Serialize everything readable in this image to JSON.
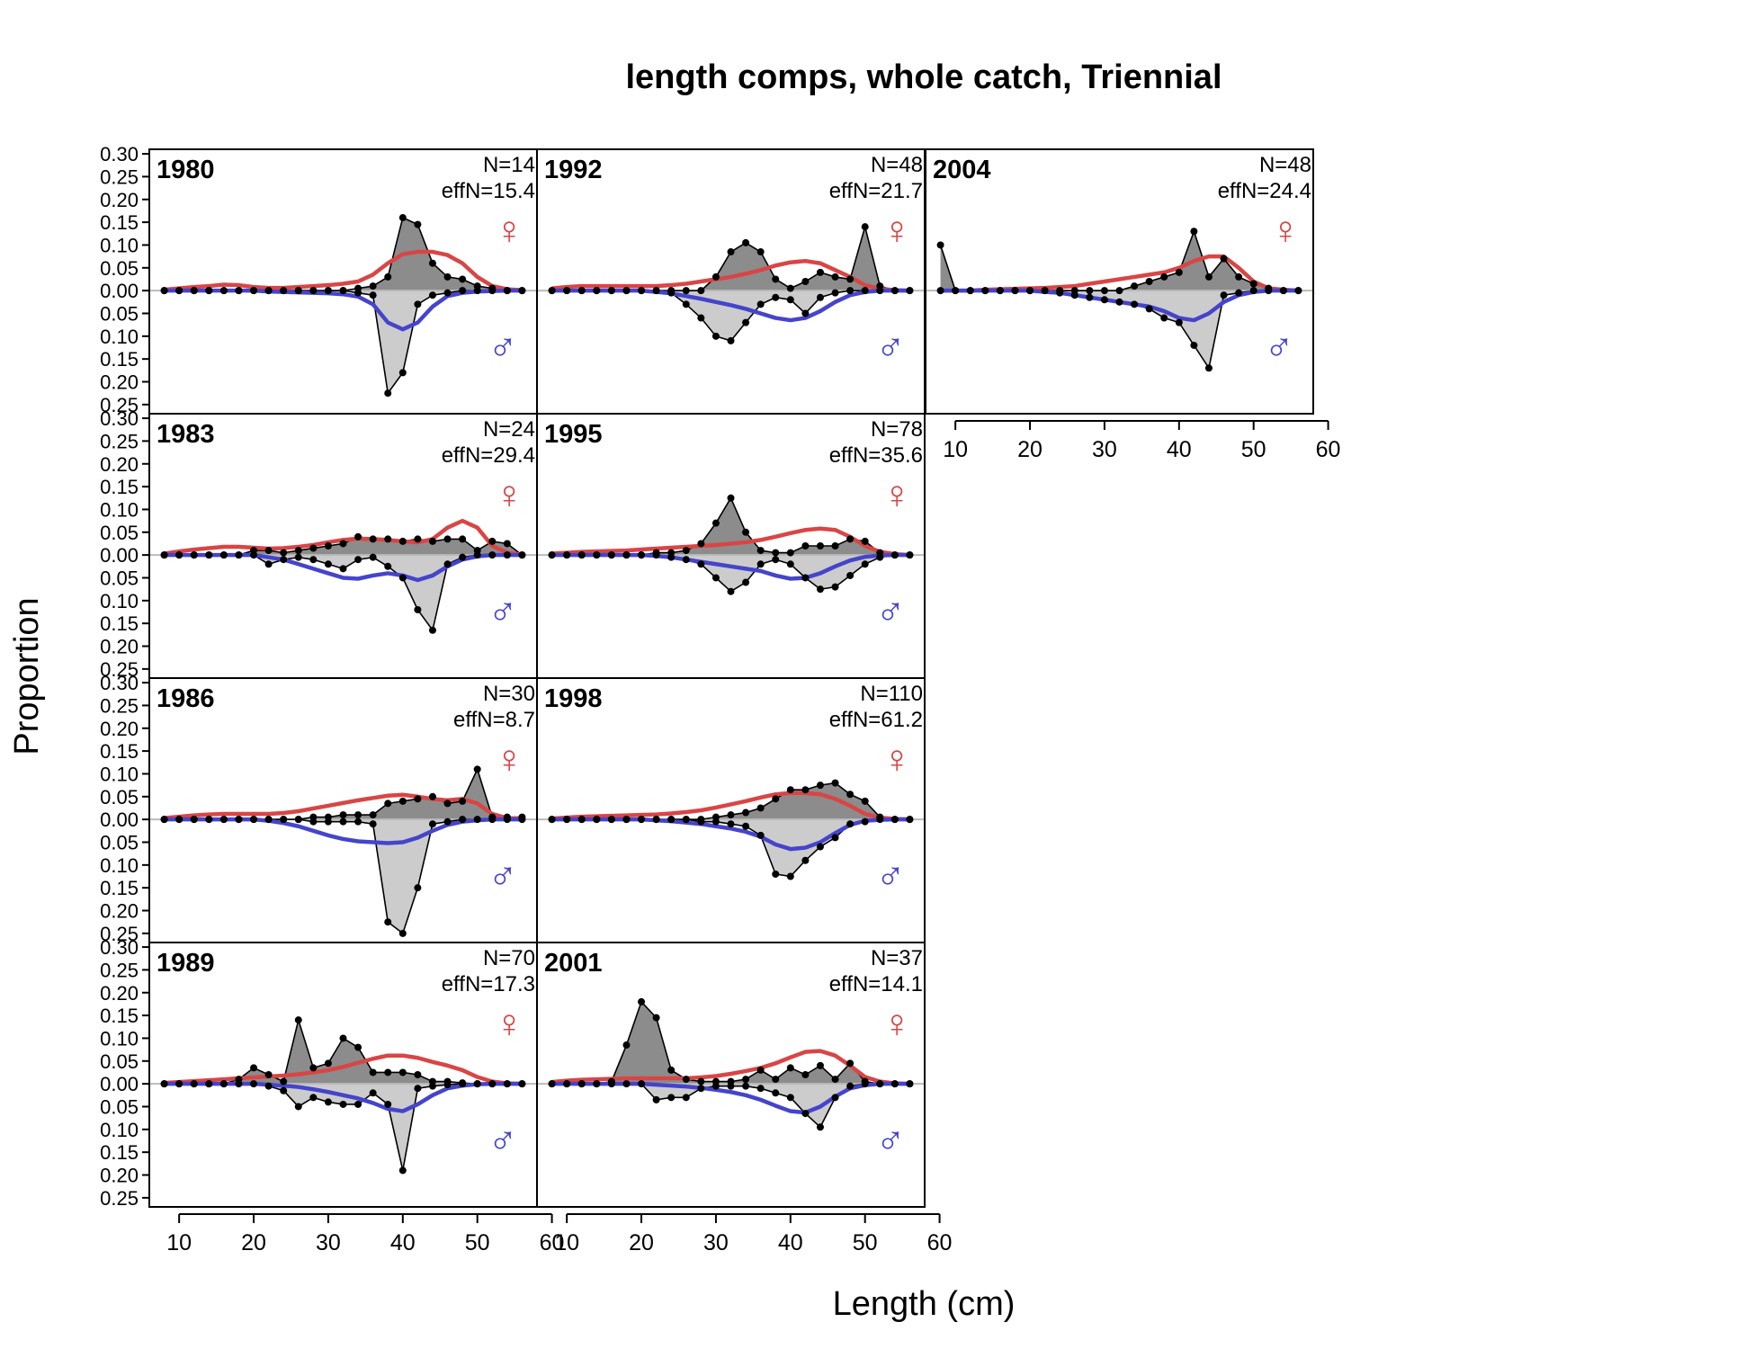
{
  "chart_data": {
    "type": "area",
    "title": "length comps, whole catch, Triennial",
    "xlabel": "Length (cm)",
    "ylabel": "Proportion",
    "xlim": [
      6,
      58
    ],
    "ylim": [
      -0.27,
      0.31
    ],
    "x_ticks": [
      10,
      20,
      30,
      40,
      50,
      60
    ],
    "y_ticks": [
      -0.25,
      -0.2,
      -0.15,
      -0.1,
      -0.05,
      0,
      0.05,
      0.1,
      0.15,
      0.2,
      0.25,
      0.3
    ],
    "y_tick_labels": [
      "0.25",
      "0.20",
      "0.15",
      "0.10",
      "0.05",
      "0.00",
      "0.05",
      "0.10",
      "0.15",
      "0.20",
      "0.25",
      "0.30"
    ],
    "female_symbol": "♀",
    "male_symbol": "♂",
    "series_colors": {
      "female_expected": "#d94545",
      "male_expected": "#4444cc",
      "observed_fill": "#8c8c8c",
      "observed_male_fill": "#cccccc",
      "zero_line": "#bbbbbb"
    },
    "length_bins": [
      8,
      10,
      12,
      14,
      16,
      18,
      20,
      22,
      24,
      26,
      28,
      30,
      32,
      34,
      36,
      38,
      40,
      42,
      44,
      46,
      48,
      50,
      52,
      54,
      56
    ],
    "panels": [
      {
        "year": "1980",
        "n_label": "N=14",
        "effn_label": "effN=15.4",
        "obs_female": [
          0,
          0,
          0,
          0,
          0,
          0,
          0,
          0,
          0,
          0,
          0,
          0,
          0,
          0.005,
          0.01,
          0.03,
          0.16,
          0.145,
          0.06,
          0.03,
          0.025,
          0.01,
          0.005,
          0,
          0
        ],
        "obs_male": [
          0,
          0,
          0,
          0,
          0,
          0,
          0,
          0,
          0,
          0,
          0,
          0,
          0,
          -0.005,
          -0.01,
          -0.225,
          -0.18,
          -0.03,
          -0.01,
          -0.005,
          0,
          0,
          0,
          0,
          0
        ],
        "exp_female": [
          0.002,
          0.005,
          0.008,
          0.01,
          0.013,
          0.012,
          0.008,
          0.006,
          0.006,
          0.008,
          0.01,
          0.012,
          0.015,
          0.02,
          0.035,
          0.06,
          0.08,
          0.085,
          0.085,
          0.078,
          0.06,
          0.03,
          0.01,
          0.003,
          0.001
        ],
        "exp_male": [
          0,
          0,
          0,
          0,
          0,
          0,
          0,
          -0.002,
          -0.003,
          -0.004,
          -0.005,
          -0.006,
          -0.008,
          -0.013,
          -0.03,
          -0.07,
          -0.085,
          -0.07,
          -0.035,
          -0.012,
          -0.005,
          -0.002,
          -0.001,
          0,
          0
        ]
      },
      {
        "year": "1992",
        "n_label": "N=48",
        "effn_label": "effN=21.7",
        "obs_female": [
          0,
          0,
          0,
          0,
          0,
          0,
          0,
          0,
          0,
          0,
          0,
          0.03,
          0.085,
          0.105,
          0.085,
          0.025,
          0.005,
          0.02,
          0.04,
          0.03,
          0.025,
          0.14,
          0.01,
          0,
          0
        ],
        "obs_male": [
          0,
          0,
          0,
          0,
          0,
          0,
          0,
          0,
          -0.005,
          -0.03,
          -0.06,
          -0.1,
          -0.11,
          -0.07,
          -0.03,
          -0.015,
          -0.02,
          -0.05,
          -0.015,
          -0.005,
          0,
          0,
          0,
          0,
          0
        ],
        "exp_female": [
          0.005,
          0.008,
          0.01,
          0.01,
          0.01,
          0.01,
          0.01,
          0.01,
          0.012,
          0.015,
          0.02,
          0.025,
          0.03,
          0.037,
          0.045,
          0.055,
          0.062,
          0.065,
          0.06,
          0.045,
          0.03,
          0.012,
          0.004,
          0.001,
          0
        ],
        "exp_male": [
          0,
          0,
          0,
          0,
          0,
          0,
          0,
          -0.003,
          -0.006,
          -0.012,
          -0.018,
          -0.025,
          -0.032,
          -0.04,
          -0.05,
          -0.06,
          -0.065,
          -0.06,
          -0.045,
          -0.025,
          -0.01,
          -0.003,
          0,
          0,
          0
        ]
      },
      {
        "year": "2004",
        "n_label": "N=48",
        "effn_label": "effN=24.4",
        "obs_female": [
          0.1,
          0,
          0,
          0,
          0,
          0,
          0,
          0,
          0,
          0,
          0,
          0,
          0,
          0.01,
          0.02,
          0.03,
          0.04,
          0.13,
          0.03,
          0.07,
          0.03,
          0.015,
          0.005,
          0,
          0
        ],
        "obs_male": [
          0,
          0,
          0,
          0,
          0,
          0,
          0,
          0,
          -0.005,
          -0.01,
          -0.015,
          -0.02,
          -0.025,
          -0.03,
          -0.04,
          -0.06,
          -0.07,
          -0.12,
          -0.17,
          -0.01,
          -0.005,
          0,
          0,
          0,
          0
        ],
        "exp_female": [
          0,
          0,
          0,
          0.002,
          0.003,
          0.004,
          0.005,
          0.006,
          0.008,
          0.01,
          0.015,
          0.02,
          0.025,
          0.03,
          0.035,
          0.04,
          0.05,
          0.065,
          0.075,
          0.075,
          0.05,
          0.02,
          0.005,
          0.002,
          0
        ],
        "exp_male": [
          0,
          0,
          0,
          0,
          0,
          0,
          0,
          -0.003,
          -0.005,
          -0.01,
          -0.015,
          -0.02,
          -0.025,
          -0.03,
          -0.035,
          -0.045,
          -0.06,
          -0.065,
          -0.05,
          -0.025,
          -0.01,
          -0.003,
          0,
          0,
          0
        ]
      },
      {
        "year": "1983",
        "n_label": "N=24",
        "effn_label": "effN=29.4",
        "obs_female": [
          0,
          0,
          0,
          0,
          0,
          0,
          0.01,
          0.01,
          0.005,
          0.01,
          0.015,
          0.02,
          0.025,
          0.04,
          0.035,
          0.035,
          0.03,
          0.035,
          0.03,
          0.035,
          0.035,
          0.01,
          0.03,
          0.025,
          0
        ],
        "obs_male": [
          0,
          0,
          0,
          0,
          0,
          0,
          0,
          -0.02,
          -0.01,
          -0.005,
          -0.01,
          -0.02,
          -0.03,
          -0.01,
          -0.005,
          -0.025,
          -0.05,
          -0.12,
          -0.165,
          -0.02,
          -0.005,
          0,
          0,
          0,
          0
        ],
        "exp_female": [
          0.003,
          0.008,
          0.012,
          0.015,
          0.018,
          0.018,
          0.016,
          0.014,
          0.015,
          0.018,
          0.022,
          0.028,
          0.033,
          0.036,
          0.035,
          0.033,
          0.03,
          0.028,
          0.035,
          0.06,
          0.075,
          0.06,
          0.02,
          0.005,
          0.001
        ],
        "exp_male": [
          0,
          0,
          0,
          0,
          0,
          0,
          0,
          -0.005,
          -0.01,
          -0.02,
          -0.03,
          -0.04,
          -0.05,
          -0.052,
          -0.045,
          -0.04,
          -0.045,
          -0.055,
          -0.045,
          -0.025,
          -0.01,
          -0.003,
          0,
          0,
          0
        ]
      },
      {
        "year": "1995",
        "n_label": "N=78",
        "effn_label": "effN=35.6",
        "obs_female": [
          0,
          0,
          0,
          0,
          0,
          0,
          0,
          0.005,
          0.005,
          0.01,
          0.025,
          0.07,
          0.125,
          0.05,
          0.01,
          0.005,
          0.005,
          0.02,
          0.02,
          0.02,
          0.035,
          0.03,
          0.005,
          0,
          0
        ],
        "obs_male": [
          0,
          0,
          0,
          0,
          0,
          0,
          0,
          0,
          -0.005,
          -0.01,
          -0.02,
          -0.05,
          -0.08,
          -0.06,
          -0.02,
          -0.01,
          -0.02,
          -0.05,
          -0.075,
          -0.07,
          -0.045,
          -0.02,
          -0.005,
          0,
          0
        ],
        "exp_female": [
          0.003,
          0.005,
          0.007,
          0.008,
          0.009,
          0.01,
          0.012,
          0.014,
          0.016,
          0.018,
          0.02,
          0.022,
          0.025,
          0.028,
          0.033,
          0.04,
          0.048,
          0.055,
          0.058,
          0.055,
          0.04,
          0.02,
          0.007,
          0.002,
          0
        ],
        "exp_male": [
          0,
          0,
          0,
          0,
          0,
          0,
          0,
          -0.002,
          -0.005,
          -0.01,
          -0.015,
          -0.02,
          -0.025,
          -0.03,
          -0.035,
          -0.045,
          -0.052,
          -0.05,
          -0.04,
          -0.025,
          -0.012,
          -0.004,
          -0.001,
          0,
          0
        ]
      },
      {
        "year": "1986",
        "n_label": "N=30",
        "effn_label": "effN=8.7",
        "obs_female": [
          0,
          0,
          0,
          0,
          0,
          0,
          0,
          0,
          0,
          0,
          0.005,
          0.005,
          0.01,
          0.01,
          0.01,
          0.035,
          0.04,
          0.045,
          0.05,
          0.035,
          0.04,
          0.11,
          0.005,
          0.005,
          0.005
        ],
        "obs_male": [
          0,
          0,
          0,
          0,
          0,
          0,
          0,
          0,
          0,
          0,
          -0.005,
          -0.005,
          -0.005,
          -0.005,
          -0.01,
          -0.225,
          -0.25,
          -0.15,
          -0.01,
          -0.005,
          0,
          0,
          0,
          0,
          0
        ],
        "exp_female": [
          0.003,
          0.006,
          0.009,
          0.011,
          0.012,
          0.012,
          0.012,
          0.012,
          0.014,
          0.018,
          0.024,
          0.03,
          0.036,
          0.042,
          0.047,
          0.052,
          0.054,
          0.05,
          0.045,
          0.042,
          0.045,
          0.035,
          0.012,
          0.003,
          0.001
        ],
        "exp_male": [
          0,
          0,
          0,
          0,
          0,
          0,
          0,
          -0.003,
          -0.008,
          -0.015,
          -0.025,
          -0.035,
          -0.043,
          -0.048,
          -0.05,
          -0.052,
          -0.05,
          -0.04,
          -0.025,
          -0.012,
          -0.005,
          -0.002,
          0,
          0,
          0
        ]
      },
      {
        "year": "1998",
        "n_label": "N=110",
        "effn_label": "effN=61.2",
        "obs_female": [
          0,
          0,
          0,
          0,
          0,
          0,
          0,
          0,
          0,
          0,
          0,
          0.005,
          0.01,
          0.015,
          0.025,
          0.045,
          0.065,
          0.065,
          0.075,
          0.08,
          0.055,
          0.04,
          0.005,
          0,
          0
        ],
        "obs_male": [
          0,
          0,
          0,
          0,
          0,
          0,
          0,
          0,
          0,
          0,
          -0.005,
          -0.005,
          -0.01,
          -0.015,
          -0.035,
          -0.12,
          -0.125,
          -0.09,
          -0.06,
          -0.04,
          -0.01,
          -0.005,
          0,
          0,
          0
        ],
        "exp_female": [
          0.002,
          0.004,
          0.006,
          0.007,
          0.008,
          0.009,
          0.01,
          0.011,
          0.013,
          0.016,
          0.02,
          0.026,
          0.033,
          0.04,
          0.048,
          0.055,
          0.058,
          0.058,
          0.055,
          0.045,
          0.03,
          0.012,
          0.004,
          0.001,
          0
        ],
        "exp_male": [
          0,
          0,
          0,
          0,
          0,
          0,
          0,
          -0.002,
          -0.004,
          -0.007,
          -0.01,
          -0.015,
          -0.02,
          -0.027,
          -0.038,
          -0.055,
          -0.065,
          -0.062,
          -0.05,
          -0.03,
          -0.012,
          -0.003,
          -0.001,
          0,
          0
        ]
      },
      {
        "year": "1989",
        "n_label": "N=70",
        "effn_label": "effN=17.3",
        "obs_female": [
          0,
          0,
          0,
          0,
          0,
          0.01,
          0.035,
          0.02,
          0.005,
          0.14,
          0.035,
          0.045,
          0.1,
          0.08,
          0.025,
          0.025,
          0.025,
          0.02,
          0.005,
          0.005,
          0.002,
          0,
          0,
          0,
          0
        ],
        "obs_male": [
          0,
          0,
          0,
          0,
          0,
          0,
          0,
          -0.005,
          -0.015,
          -0.05,
          -0.03,
          -0.04,
          -0.045,
          -0.045,
          -0.02,
          -0.045,
          -0.19,
          -0.01,
          -0.005,
          -0.002,
          0,
          0,
          0,
          0,
          0
        ],
        "exp_female": [
          0.002,
          0.004,
          0.006,
          0.008,
          0.01,
          0.012,
          0.014,
          0.016,
          0.018,
          0.021,
          0.025,
          0.03,
          0.037,
          0.046,
          0.055,
          0.062,
          0.062,
          0.057,
          0.048,
          0.04,
          0.03,
          0.015,
          0.005,
          0.001,
          0
        ],
        "exp_male": [
          0,
          0,
          0,
          0,
          0,
          0,
          0,
          -0.002,
          -0.004,
          -0.007,
          -0.012,
          -0.018,
          -0.025,
          -0.032,
          -0.042,
          -0.055,
          -0.06,
          -0.045,
          -0.025,
          -0.01,
          -0.004,
          -0.001,
          0,
          0,
          0
        ]
      },
      {
        "year": "2001",
        "n_label": "N=37",
        "effn_label": "effN=14.1",
        "obs_female": [
          0,
          0,
          0,
          0,
          0.005,
          0.085,
          0.18,
          0.145,
          0.03,
          0.01,
          0.005,
          0.005,
          0.005,
          0.01,
          0.03,
          0.01,
          0.035,
          0.02,
          0.04,
          0.01,
          0.045,
          0.005,
          0,
          0,
          0
        ],
        "obs_male": [
          0,
          0,
          0,
          0,
          0,
          0,
          0,
          -0.035,
          -0.03,
          -0.03,
          -0.01,
          -0.005,
          -0.005,
          -0.005,
          -0.01,
          -0.02,
          -0.03,
          -0.065,
          -0.095,
          -0.03,
          -0.005,
          0,
          0,
          0,
          0
        ],
        "exp_female": [
          0.004,
          0.007,
          0.009,
          0.01,
          0.011,
          0.012,
          0.012,
          0.012,
          0.012,
          0.012,
          0.014,
          0.017,
          0.022,
          0.028,
          0.035,
          0.045,
          0.058,
          0.07,
          0.072,
          0.062,
          0.04,
          0.015,
          0.005,
          0.001,
          0
        ],
        "exp_male": [
          0,
          0,
          0,
          0,
          0,
          0,
          0,
          -0.002,
          -0.004,
          -0.006,
          -0.009,
          -0.013,
          -0.018,
          -0.025,
          -0.035,
          -0.048,
          -0.06,
          -0.063,
          -0.05,
          -0.028,
          -0.01,
          -0.003,
          0,
          0,
          0
        ]
      }
    ]
  }
}
